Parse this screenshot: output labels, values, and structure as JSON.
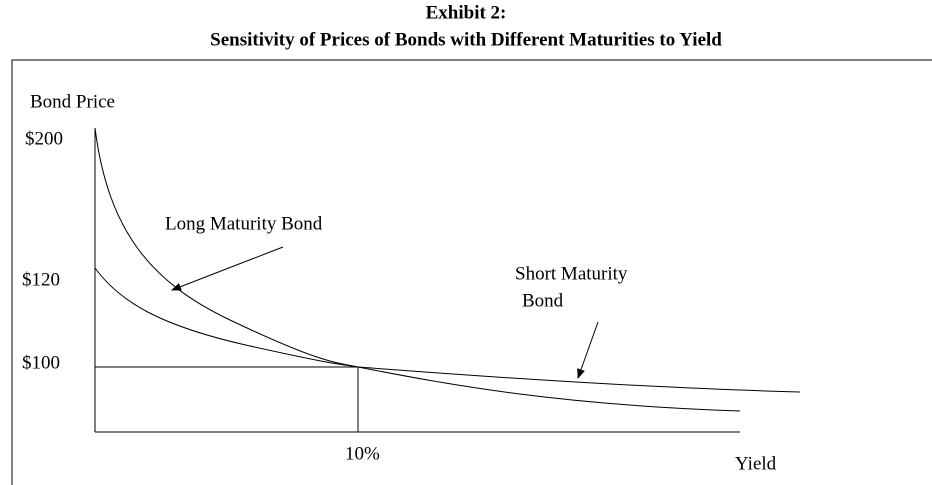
{
  "title": "Exhibit 2:",
  "subtitle": "Sensitivity of Prices of Bonds with Different Maturities to  Yield",
  "y_axis_label": "Bond Price",
  "x_axis_label": "Yield",
  "y_ticks": [
    "$200",
    "$120",
    "$100"
  ],
  "x_ticks": [
    "10%"
  ],
  "curves": [
    {
      "label": "Long Maturity Bond"
    },
    {
      "label_lines": [
        "Short Maturity",
        "Bond"
      ]
    }
  ]
}
